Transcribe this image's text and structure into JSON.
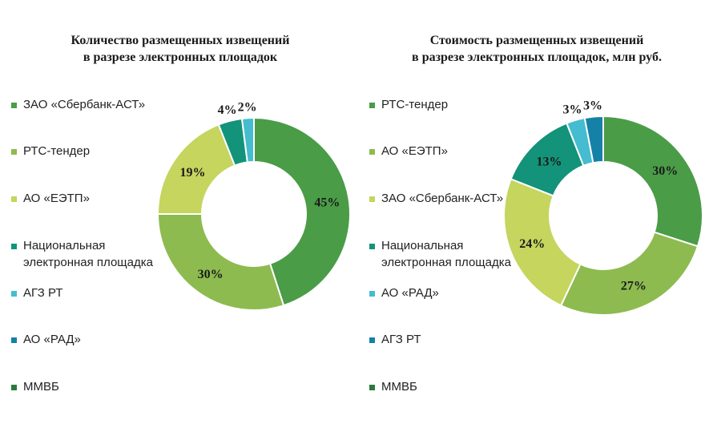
{
  "chart_data": [
    {
      "type": "pie",
      "title": "Количество размещенных извещений\nв разрезе электронных площадок",
      "legend": [
        "ЗАО «Сбербанк-АСТ»",
        "РТС-тендер",
        "АО «ЕЭТП»",
        "Национальная\nэлектронная площадка",
        "АГЗ РТ",
        "АО «РАД»",
        "ММВБ"
      ],
      "legend_colors": [
        "#4a9c47",
        "#8dbb4f",
        "#c5d55e",
        "#12937a",
        "#45bccf",
        "#1581a7",
        "#2c7a3b"
      ],
      "slices": [
        {
          "label": "45%",
          "value": 45,
          "color": "#4a9c47"
        },
        {
          "label": "30%",
          "value": 30,
          "color": "#8dbb4f"
        },
        {
          "label": "19%",
          "value": 19,
          "color": "#c5d55e"
        },
        {
          "label": "4%",
          "value": 4,
          "color": "#12937a"
        },
        {
          "label": "2%",
          "value": 2,
          "color": "#45bccf"
        }
      ],
      "legend_placement": "left",
      "donut": true
    },
    {
      "type": "pie",
      "title": "Стоимость размещенных извещений\nв разрезе электронных площадок, млн руб.",
      "legend": [
        "РТС-тендер",
        "АО «ЕЭТП»",
        "ЗАО «Сбербанк-АСТ»",
        "Национальная\nэлектронная площадка",
        "АО «РАД»",
        "АГЗ РТ",
        "ММВБ"
      ],
      "legend_colors": [
        "#4a9c47",
        "#8dbb4f",
        "#c5d55e",
        "#12937a",
        "#45bccf",
        "#1581a7",
        "#2c7a3b"
      ],
      "slices": [
        {
          "label": "30%",
          "value": 30,
          "color": "#4a9c47"
        },
        {
          "label": "27%",
          "value": 27,
          "color": "#8dbb4f"
        },
        {
          "label": "24%",
          "value": 24,
          "color": "#c5d55e"
        },
        {
          "label": "13%",
          "value": 13,
          "color": "#12937a"
        },
        {
          "label": "3%",
          "value": 3,
          "color": "#45bccf"
        },
        {
          "label": "3%",
          "value": 3,
          "color": "#1581a7"
        }
      ],
      "legend_placement": "left",
      "donut": true
    }
  ]
}
